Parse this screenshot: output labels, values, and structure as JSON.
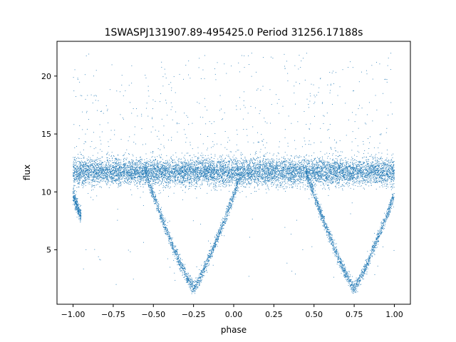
{
  "chart_data": {
    "type": "scatter",
    "title": "1SWASPJ131907.89-495425.0 Period 31256.17188s",
    "xlabel": "phase",
    "ylabel": "flux",
    "xlim": [
      -1.1,
      1.1
    ],
    "ylim": [
      0.3,
      23.0
    ],
    "x_ticks": [
      -1.0,
      -0.75,
      -0.5,
      -0.25,
      0.0,
      0.25,
      0.5,
      0.75,
      1.0
    ],
    "x_tick_labels": [
      "−1.00",
      "−0.75",
      "−0.50",
      "−0.25",
      "0.00",
      "0.25",
      "0.50",
      "0.75",
      "1.00"
    ],
    "y_ticks": [
      5,
      10,
      15,
      20
    ],
    "y_tick_labels": [
      "5",
      "10",
      "15",
      "20"
    ],
    "grid": false,
    "legend": "none",
    "marker_color": "#1f77b4",
    "phase_range": [
      -1.0,
      1.0
    ],
    "baseline_flux": 11.7,
    "baseline_spread": 0.75,
    "eclipse": {
      "centers": [
        -0.25,
        0.75
      ],
      "min_flux": 1.7,
      "half_width_phase": 0.3,
      "profile": "V-shaped"
    },
    "outlier_flux_range": [
      12.5,
      22.0
    ]
  }
}
